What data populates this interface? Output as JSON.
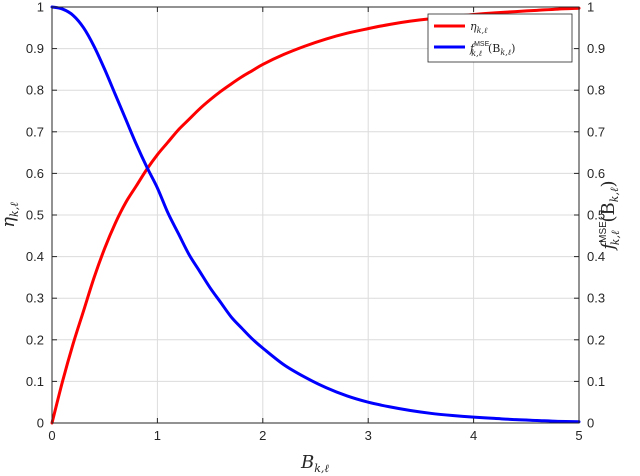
{
  "chart_data": {
    "type": "line",
    "xlabel": "B",
    "xlabel_sub": "k,ℓ",
    "ylabel_left": "η",
    "ylabel_left_sub": "k,ℓ",
    "ylabel_right": "f",
    "ylabel_right_sup": "MSE",
    "ylabel_right_sub": "k,ℓ",
    "ylabel_right_arg": "(B",
    "ylabel_right_arg_sub": "k,ℓ",
    "ylabel_right_close": ")",
    "xlim": [
      0,
      5
    ],
    "ylim_left": [
      0,
      1
    ],
    "ylim_right": [
      0,
      1
    ],
    "x_ticks": [
      "0",
      "1",
      "2",
      "3",
      "4",
      "5"
    ],
    "y_ticks": [
      "0",
      "0.1",
      "0.2",
      "0.3",
      "0.4",
      "0.5",
      "0.6",
      "0.7",
      "0.8",
      "0.9",
      "1"
    ],
    "grid": true,
    "legend_position": "top-right",
    "x": [
      0,
      0.1,
      0.2,
      0.3,
      0.4,
      0.5,
      0.6,
      0.7,
      0.8,
      0.9,
      1.0,
      1.1,
      1.2,
      1.3,
      1.4,
      1.5,
      1.6,
      1.7,
      1.8,
      1.9,
      2.0,
      2.2,
      2.4,
      2.6,
      2.8,
      3.0,
      3.2,
      3.4,
      3.6,
      3.8,
      4.0,
      4.2,
      4.4,
      4.6,
      4.8,
      5.0
    ],
    "series": [
      {
        "name": "η",
        "name_sub": "k,ℓ",
        "color": "#ff0000",
        "axis": "left",
        "values": [
          0,
          0.1,
          0.19,
          0.27,
          0.35,
          0.42,
          0.48,
          0.53,
          0.57,
          0.61,
          0.645,
          0.675,
          0.705,
          0.73,
          0.755,
          0.777,
          0.797,
          0.815,
          0.832,
          0.847,
          0.862,
          0.886,
          0.906,
          0.923,
          0.937,
          0.948,
          0.958,
          0.966,
          0.972,
          0.977,
          0.982,
          0.986,
          0.989,
          0.992,
          0.995,
          0.997
        ]
      },
      {
        "name": "f",
        "name_sup": "MSE",
        "name_sub": "k,ℓ",
        "name_arg": "(B",
        "name_arg_sub": "k,ℓ",
        "name_close": ")",
        "color": "#0000ff",
        "axis": "right",
        "values": [
          1.0,
          0.995,
          0.98,
          0.95,
          0.905,
          0.85,
          0.79,
          0.73,
          0.67,
          0.615,
          0.565,
          0.505,
          0.455,
          0.405,
          0.365,
          0.325,
          0.29,
          0.255,
          0.228,
          0.202,
          0.18,
          0.14,
          0.11,
          0.085,
          0.065,
          0.05,
          0.039,
          0.03,
          0.023,
          0.018,
          0.014,
          0.011,
          0.008,
          0.006,
          0.004,
          0.003
        ]
      }
    ]
  }
}
